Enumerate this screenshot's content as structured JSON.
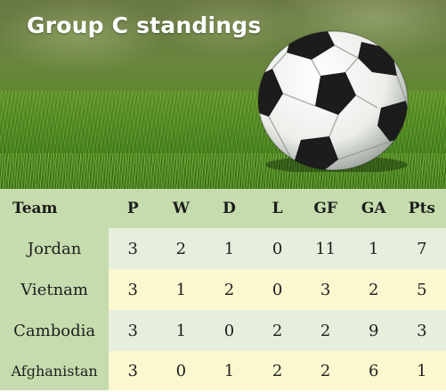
{
  "title": "Group C standings",
  "table": {
    "columns": [
      "Team",
      "P",
      "W",
      "D",
      "L",
      "GF",
      "GA",
      "Pts"
    ],
    "rows": [
      {
        "team": "Jordan",
        "p": "3",
        "w": "2",
        "d": "1",
        "l": "0",
        "gf": "11",
        "ga": "1",
        "pts": "7"
      },
      {
        "team": "Vietnam",
        "p": "3",
        "w": "1",
        "d": "2",
        "l": "0",
        "gf": "3",
        "ga": "2",
        "pts": "5"
      },
      {
        "team": "Cambodia",
        "p": "3",
        "w": "1",
        "d": "0",
        "l": "2",
        "gf": "2",
        "ga": "9",
        "pts": "3"
      },
      {
        "team": "Afghanistan",
        "p": "3",
        "w": "0",
        "d": "1",
        "l": "2",
        "gf": "2",
        "ga": "6",
        "pts": "1"
      }
    ]
  },
  "colors": {
    "header_green": "#c6dcae",
    "row_light_green": "#e6eedd",
    "row_light_yellow": "#fbf7cf"
  }
}
